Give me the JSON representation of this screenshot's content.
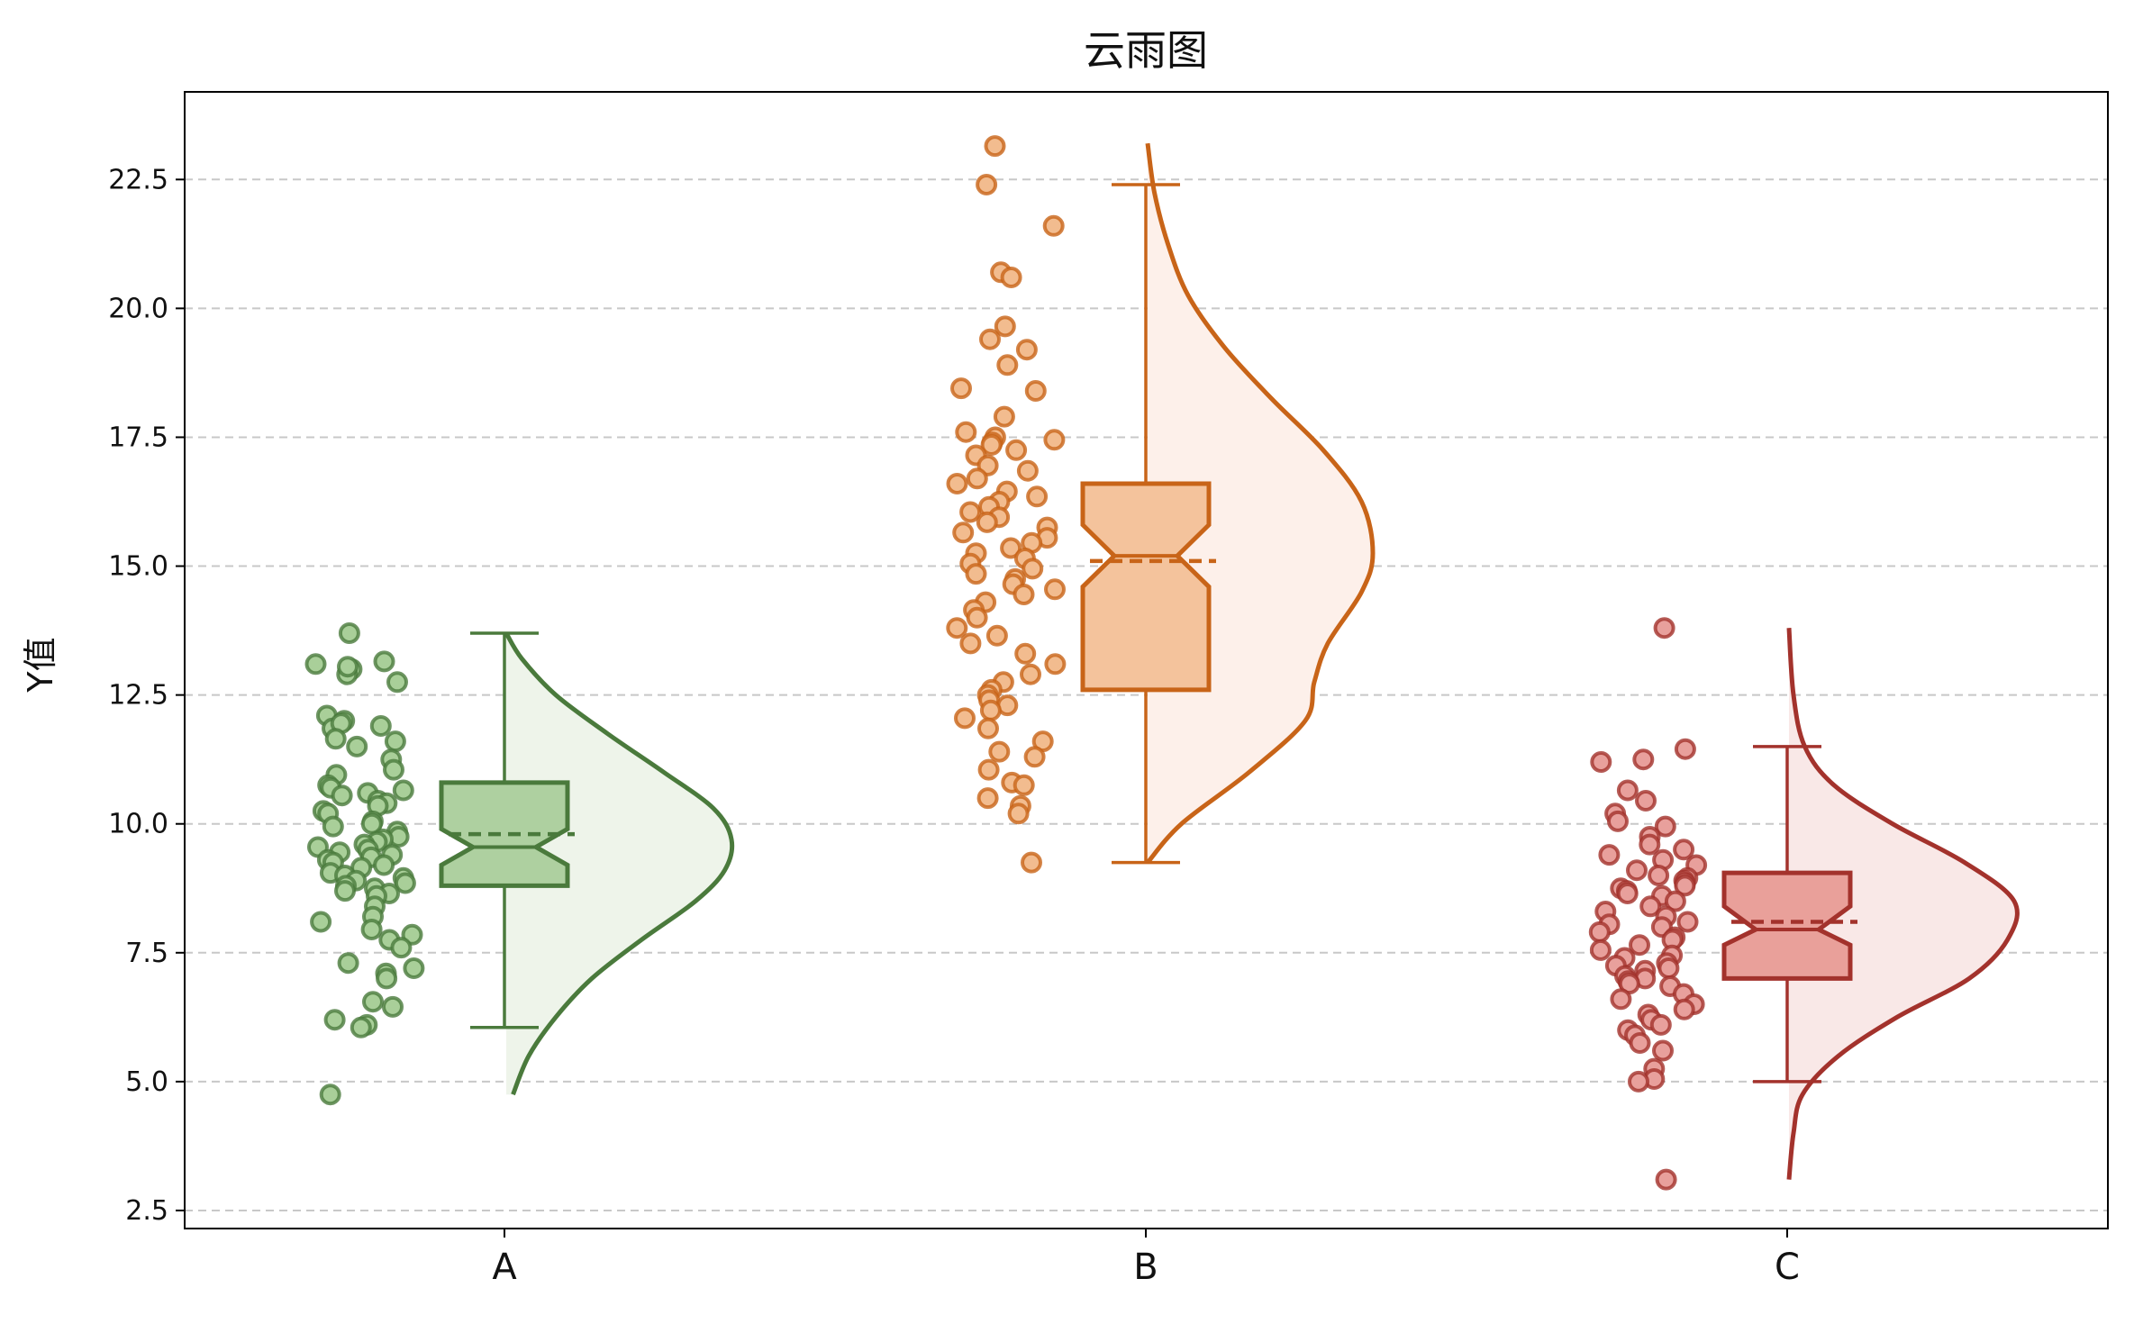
{
  "chart_data": {
    "type": "raincloud",
    "title": "云雨图",
    "xlabel": "",
    "ylabel": "Y值",
    "ylim": [
      2.15,
      24.2
    ],
    "yticks": [
      "2.5",
      "5.0",
      "7.5",
      "10.0",
      "12.5",
      "15.0",
      "17.5",
      "20.0",
      "22.5"
    ],
    "grid": "horizontal dashed",
    "categories": [
      "A",
      "B",
      "C"
    ],
    "groups": [
      {
        "name": "A",
        "color": "#4a7a3c",
        "box_fill": "#aed0a0",
        "cloud_fill": "#eef4ea",
        "point_fill": "#a9cf99",
        "whisker_low": 6.05,
        "q1": 8.8,
        "median": 9.55,
        "mean": 9.8,
        "q3": 10.8,
        "whisker_high": 13.7,
        "notch_low": 9.2,
        "notch_high": 9.9,
        "kde": [
          [
            4.75,
            0.03
          ],
          [
            5.5,
            0.1
          ],
          [
            6.25,
            0.22
          ],
          [
            7.0,
            0.38
          ],
          [
            7.75,
            0.6
          ],
          [
            8.5,
            0.84
          ],
          [
            9.1,
            0.97
          ],
          [
            9.7,
            1.0
          ],
          [
            10.3,
            0.92
          ],
          [
            11.0,
            0.7
          ],
          [
            11.75,
            0.45
          ],
          [
            12.5,
            0.22
          ],
          [
            13.2,
            0.07
          ],
          [
            13.7,
            0.0
          ]
        ],
        "points": [
          13.7,
          13.15,
          13.0,
          13.1,
          12.9,
          13.05,
          12.75,
          12.1,
          12.0,
          11.85,
          11.95,
          11.9,
          11.65,
          11.6,
          11.5,
          11.25,
          11.05,
          10.95,
          10.75,
          10.7,
          10.65,
          10.6,
          10.55,
          10.45,
          10.4,
          10.35,
          10.25,
          10.2,
          10.05,
          10.0,
          9.95,
          9.85,
          9.75,
          9.7,
          9.65,
          9.6,
          9.55,
          9.5,
          9.45,
          9.4,
          9.35,
          9.3,
          9.25,
          9.2,
          9.15,
          9.05,
          9.0,
          8.95,
          8.9,
          8.85,
          8.8,
          8.75,
          8.7,
          8.65,
          8.6,
          8.4,
          8.2,
          8.1,
          7.95,
          7.85,
          7.75,
          7.6,
          7.3,
          7.2,
          7.1,
          7.0,
          6.55,
          6.45,
          6.2,
          6.1,
          6.05,
          4.75
        ]
      },
      {
        "name": "B",
        "color": "#c86418",
        "box_fill": "#f4c39c",
        "cloud_fill": "#fdf0ea",
        "point_fill": "#f2bc8f",
        "whisker_low": 9.25,
        "q1": 12.6,
        "median": 15.2,
        "mean": 15.1,
        "q3": 16.6,
        "whisker_high": 22.4,
        "notch_low": 14.6,
        "notch_high": 15.8,
        "kde": [
          [
            9.25,
            0.0
          ],
          [
            10.0,
            0.15
          ],
          [
            11.0,
            0.45
          ],
          [
            12.0,
            0.7
          ],
          [
            12.75,
            0.74
          ],
          [
            13.5,
            0.8
          ],
          [
            14.5,
            0.95
          ],
          [
            15.25,
            1.0
          ],
          [
            16.25,
            0.95
          ],
          [
            17.25,
            0.78
          ],
          [
            18.25,
            0.55
          ],
          [
            19.25,
            0.34
          ],
          [
            20.25,
            0.18
          ],
          [
            21.25,
            0.09
          ],
          [
            22.25,
            0.03
          ],
          [
            23.2,
            0.0
          ]
        ],
        "points": [
          23.15,
          22.4,
          21.6,
          20.7,
          20.6,
          19.65,
          19.4,
          19.2,
          18.9,
          18.45,
          18.4,
          17.9,
          17.6,
          17.5,
          17.45,
          17.4,
          17.35,
          17.25,
          17.15,
          16.95,
          16.85,
          16.7,
          16.6,
          16.45,
          16.35,
          16.25,
          16.15,
          16.05,
          15.95,
          15.85,
          15.75,
          15.65,
          15.55,
          15.45,
          15.35,
          15.25,
          15.15,
          15.05,
          14.95,
          14.85,
          14.75,
          14.65,
          14.55,
          14.45,
          14.3,
          14.15,
          14.0,
          13.8,
          13.65,
          13.5,
          13.3,
          13.1,
          12.9,
          12.75,
          12.6,
          12.5,
          12.4,
          12.3,
          12.2,
          12.05,
          11.85,
          11.6,
          11.4,
          11.3,
          11.05,
          10.8,
          10.75,
          10.5,
          10.35,
          10.2,
          9.25
        ]
      },
      {
        "name": "C",
        "color": "#a3322c",
        "box_fill": "#e9a09a",
        "cloud_fill": "#f9e8e7",
        "point_fill": "#e8a09c",
        "whisker_low": 5.0,
        "q1": 7.0,
        "median": 7.95,
        "mean": 8.1,
        "q3": 9.05,
        "whisker_high": 11.5,
        "notch_low": 7.65,
        "notch_high": 8.4,
        "kde": [
          [
            3.1,
            0.0
          ],
          [
            4.0,
            0.02
          ],
          [
            4.75,
            0.06
          ],
          [
            5.5,
            0.22
          ],
          [
            6.25,
            0.48
          ],
          [
            7.0,
            0.8
          ],
          [
            7.75,
            0.97
          ],
          [
            8.5,
            1.0
          ],
          [
            9.25,
            0.78
          ],
          [
            10.0,
            0.46
          ],
          [
            10.75,
            0.2
          ],
          [
            11.5,
            0.07
          ],
          [
            12.5,
            0.02
          ],
          [
            13.8,
            0.0
          ]
        ],
        "points": [
          13.8,
          11.45,
          11.25,
          11.2,
          10.65,
          10.45,
          10.2,
          10.05,
          9.95,
          9.75,
          9.6,
          9.5,
          9.4,
          9.3,
          9.2,
          9.1,
          9.0,
          8.95,
          8.9,
          8.85,
          8.8,
          8.75,
          8.7,
          8.65,
          8.6,
          8.5,
          8.4,
          8.3,
          8.2,
          8.1,
          8.05,
          8.0,
          7.9,
          7.8,
          7.75,
          7.65,
          7.55,
          7.45,
          7.4,
          7.3,
          7.25,
          7.2,
          7.15,
          7.05,
          7.0,
          6.95,
          6.9,
          6.85,
          6.7,
          6.6,
          6.5,
          6.4,
          6.3,
          6.2,
          6.1,
          6.0,
          5.9,
          5.75,
          5.6,
          5.25,
          5.05,
          5.0,
          3.1
        ]
      }
    ]
  }
}
